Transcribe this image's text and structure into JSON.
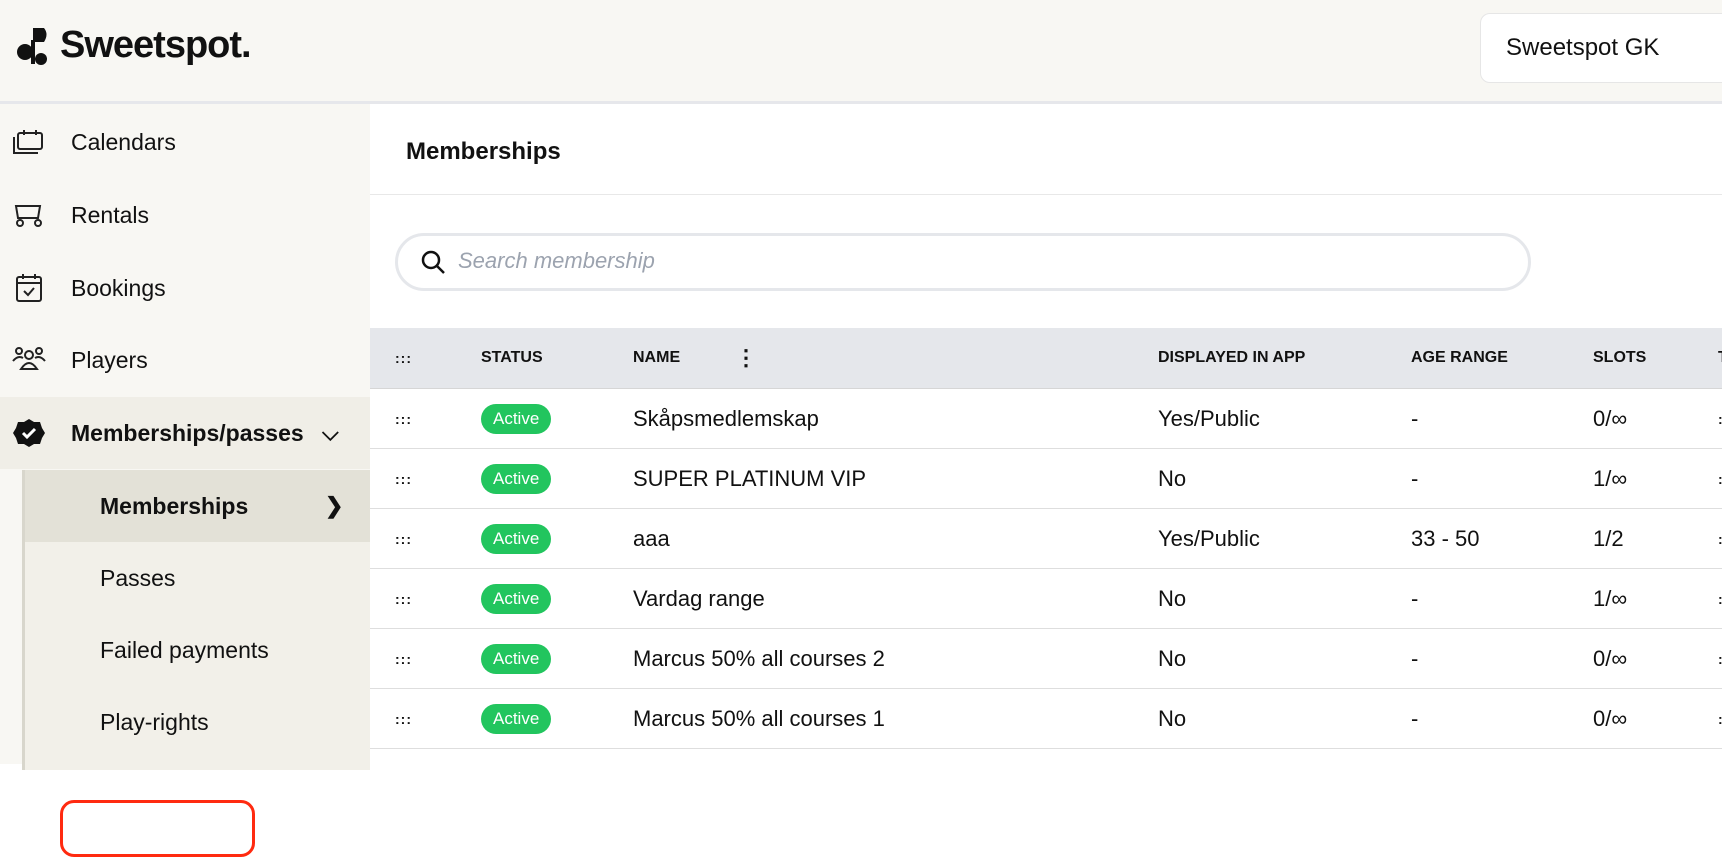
{
  "header": {
    "brand": "Sweetspot.",
    "club": "Sweetspot GK"
  },
  "sidebar": {
    "items": [
      {
        "label": "Calendars",
        "icon": "calendars-icon"
      },
      {
        "label": "Rentals",
        "icon": "golf-cart-icon"
      },
      {
        "label": "Bookings",
        "icon": "calendar-check-icon"
      },
      {
        "label": "Players",
        "icon": "players-icon"
      },
      {
        "label": "Memberships/passes",
        "icon": "badge-check-icon",
        "expanded": true
      }
    ],
    "sub_items": [
      {
        "label": "Memberships",
        "active": true
      },
      {
        "label": "Passes"
      },
      {
        "label": "Failed payments"
      },
      {
        "label": "Play-rights",
        "highlighted": true
      }
    ]
  },
  "main": {
    "title": "Memberships",
    "search": {
      "placeholder": "Search membership",
      "value": ""
    },
    "table": {
      "columns": [
        "STATUS",
        "NAME",
        "DISPLAYED IN APP",
        "AGE RANGE",
        "SLOTS",
        "T"
      ],
      "rows": [
        {
          "status": "Active",
          "name": "Skåpsmedlemskap",
          "displayed": "Yes/Public",
          "age": "-",
          "slots": "0/∞"
        },
        {
          "status": "Active",
          "name": "SUPER PLATINUM VIP",
          "displayed": "No",
          "age": "-",
          "slots": "1/∞"
        },
        {
          "status": "Active",
          "name": "aaa",
          "displayed": "Yes/Public",
          "age": "33 - 50",
          "slots": "1/2"
        },
        {
          "status": "Active",
          "name": "Vardag range",
          "displayed": "No",
          "age": "-",
          "slots": "1/∞"
        },
        {
          "status": "Active",
          "name": "Marcus 50% all courses 2",
          "displayed": "No",
          "age": "-",
          "slots": "0/∞"
        },
        {
          "status": "Active",
          "name": "Marcus 50% all courses 1",
          "displayed": "No",
          "age": "-",
          "slots": "0/∞"
        }
      ]
    }
  },
  "colors": {
    "active_badge": "#22c55e",
    "highlight": "#ff2a10",
    "header_bg": "#f8f7f3"
  }
}
